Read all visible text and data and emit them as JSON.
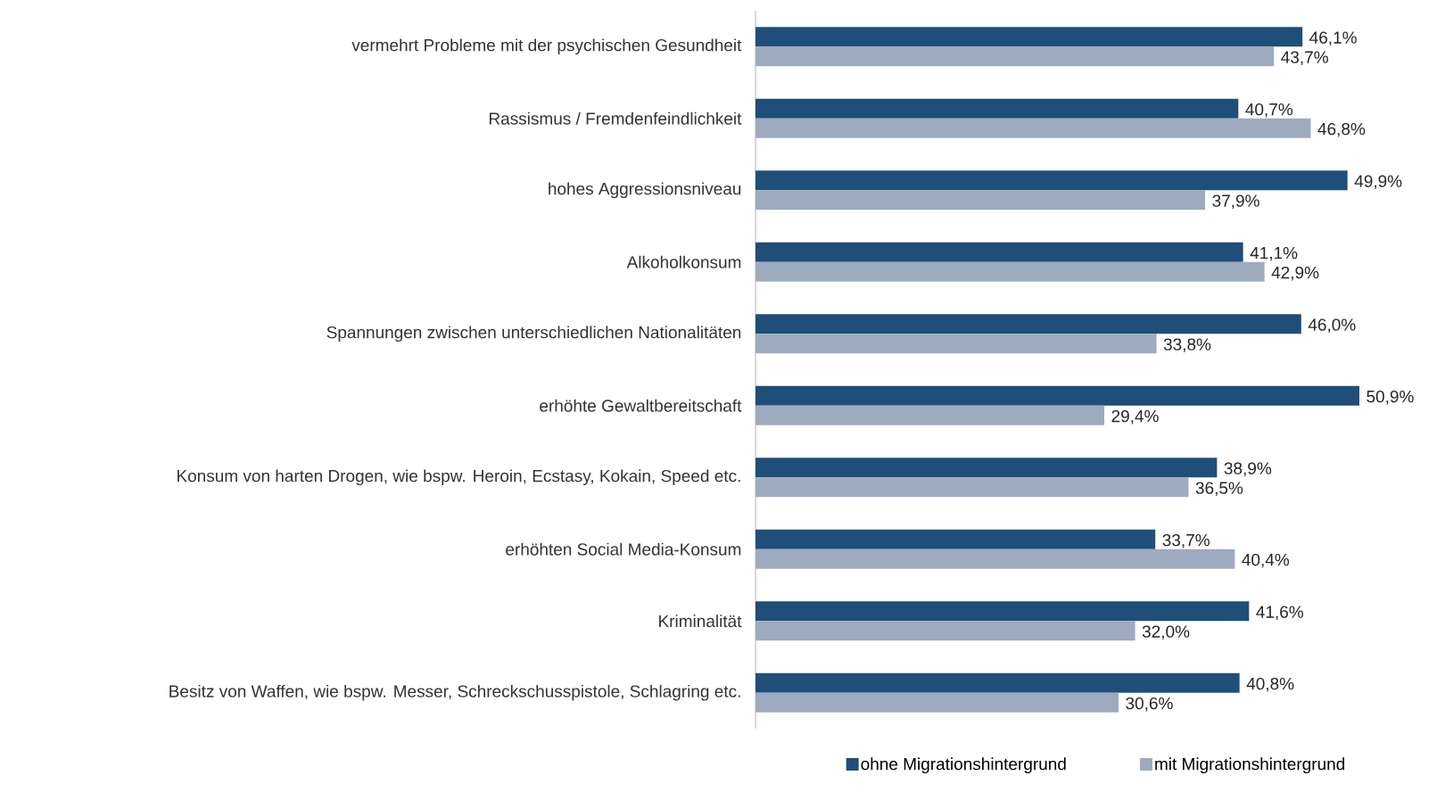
{
  "chart_data": {
    "type": "bar",
    "orientation": "horizontal",
    "legend": "bottom",
    "categories": [
      "vermehrt Probleme mit der psychischen Gesundheit",
      "Rassismus / Fremdenfeindlichkeit",
      "hohes Aggressionsniveau",
      "Alkoholkonsum",
      "Spannungen zwischen unterschiedlichen Nationalitäten",
      "erhöhte Gewaltbereitschaft",
      "Konsum von harten Drogen, wie bspw. Heroin, Ecstasy, Kokain, Speed etc.",
      "erhöhten Social Media-Konsum",
      "Kriminalität",
      "Besitz von Waffen, wie bspw. Messer, Schreckschusspistole, Schlagring etc."
    ],
    "series": [
      {
        "name": "ohne Migrationshintergrund",
        "color": "#1f4e79",
        "values": [
          46.1,
          40.7,
          49.9,
          41.1,
          46.0,
          50.9,
          38.9,
          33.7,
          41.6,
          40.8
        ],
        "value_labels": [
          "46,1%",
          "40,7%",
          "49,9%",
          "41,1%",
          "46,0%",
          "50,9%",
          "38,9%",
          "33,7%",
          "41,6%",
          "40,8%"
        ]
      },
      {
        "name": "mit Migrationshintergrund",
        "color": "#9eabbf",
        "values": [
          43.7,
          46.8,
          37.9,
          42.9,
          33.8,
          29.4,
          36.5,
          40.4,
          32.0,
          30.6
        ],
        "value_labels": [
          "43,7%",
          "46,8%",
          "37,9%",
          "42,9%",
          "33,8%",
          "29,4%",
          "36,5%",
          "40,4%",
          "32,0%",
          "30,6%"
        ]
      }
    ]
  }
}
